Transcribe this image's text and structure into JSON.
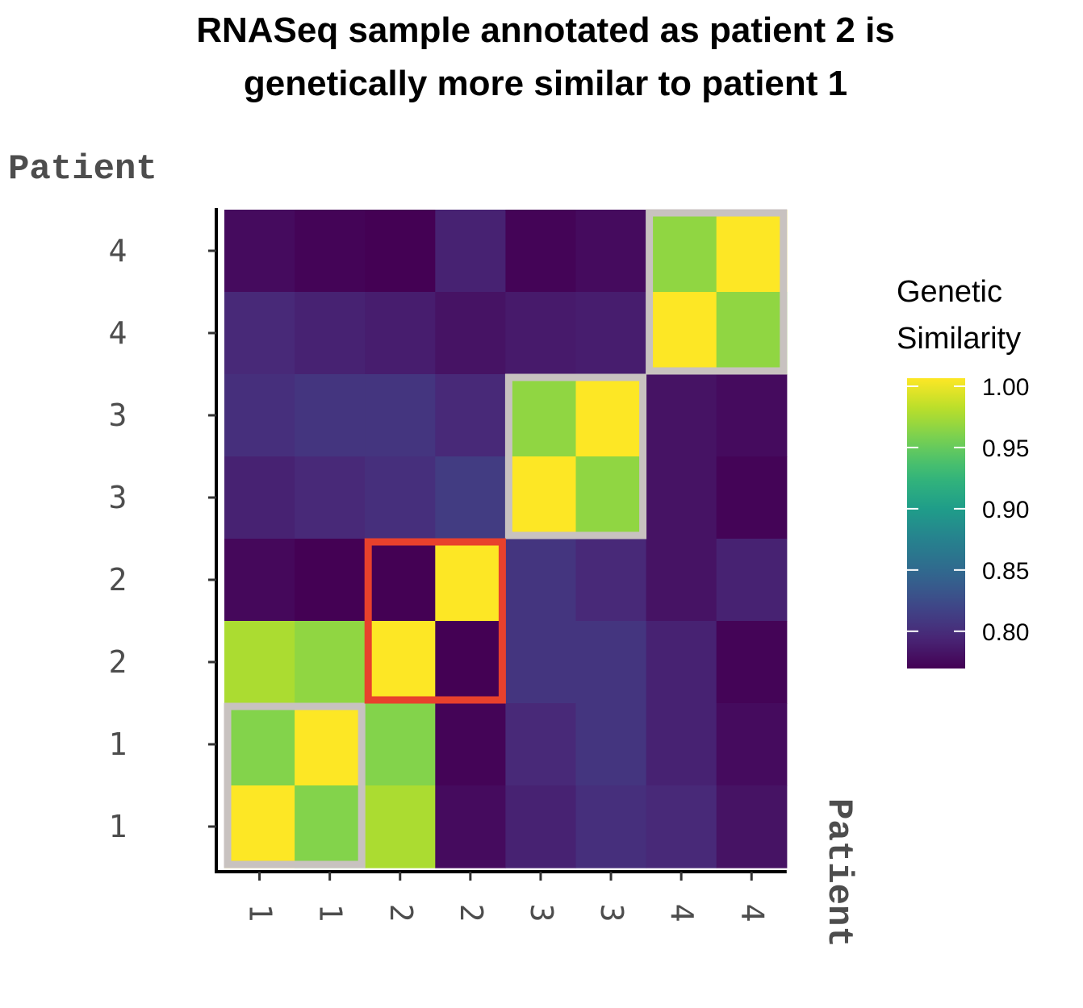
{
  "chart_data": {
    "type": "heatmap",
    "title_lines": [
      "RNASeq sample annotated as patient 2 is",
      "genetically more similar to patient 1"
    ],
    "xlabel": "Patient",
    "ylabel": "Patient",
    "x_tick_labels": [
      "1",
      "1",
      "2",
      "2",
      "3",
      "3",
      "4",
      "4"
    ],
    "y_tick_labels_bottom_to_top": [
      "1",
      "1",
      "2",
      "2",
      "3",
      "3",
      "4",
      "4"
    ],
    "rows_top_to_bottom": [
      [
        0.77,
        0.765,
        0.762,
        0.785,
        0.765,
        0.77,
        0.96,
        1.0
      ],
      [
        0.79,
        0.785,
        0.782,
        0.775,
        0.78,
        0.782,
        1.0,
        0.96
      ],
      [
        0.795,
        0.8,
        0.8,
        0.79,
        0.96,
        1.0,
        0.775,
        0.77
      ],
      [
        0.785,
        0.79,
        0.795,
        0.805,
        1.0,
        0.96,
        0.775,
        0.765
      ],
      [
        0.768,
        0.763,
        0.763,
        1.0,
        0.8,
        0.79,
        0.775,
        0.785
      ],
      [
        0.97,
        0.96,
        1.0,
        0.763,
        0.8,
        0.8,
        0.785,
        0.765
      ],
      [
        0.955,
        1.0,
        0.955,
        0.765,
        0.79,
        0.8,
        0.785,
        0.77
      ],
      [
        1.0,
        0.955,
        0.97,
        0.77,
        0.785,
        0.795,
        0.79,
        0.775
      ]
    ],
    "colorscale": "viridis",
    "color_range": [
      0.763,
      1.0
    ],
    "legend": {
      "title_lines": [
        "Genetic",
        "Similarity"
      ],
      "ticks": [
        "1.00",
        "0.95",
        "0.90",
        "0.85",
        "0.80"
      ],
      "tick_values": [
        1.0,
        0.95,
        0.9,
        0.85,
        0.8
      ],
      "placement": "right"
    },
    "highlight_boxes": [
      {
        "rows": [
          6,
          7
        ],
        "cols": [
          0,
          1
        ],
        "color": "#c8c2c0"
      },
      {
        "rows": [
          2,
          3
        ],
        "cols": [
          4,
          5
        ],
        "color": "#c8c2c0"
      },
      {
        "rows": [
          0,
          1
        ],
        "cols": [
          6,
          7
        ],
        "color": "#c8c2c0"
      },
      {
        "rows": [
          4,
          5
        ],
        "cols": [
          2,
          3
        ],
        "color": "#e8412c"
      }
    ],
    "grid": false
  }
}
